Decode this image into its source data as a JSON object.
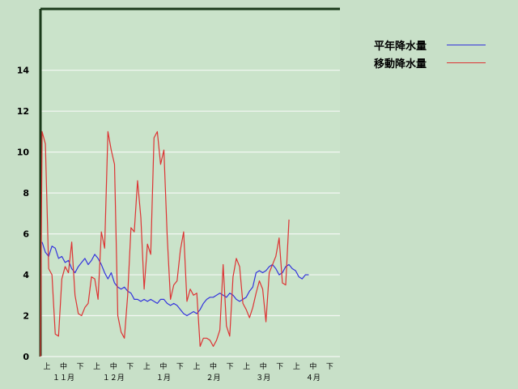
{
  "chart_data": {
    "type": "line",
    "title": "",
    "xlabel": "",
    "ylabel": "",
    "ylim": [
      0,
      17
    ],
    "yticks": [
      0,
      2,
      4,
      6,
      8,
      10,
      12,
      14
    ],
    "grid": "horizontal",
    "legend": "top-right",
    "x_unit": "半旬",
    "x_count": 90,
    "period_labels": [
      "上",
      "中",
      "下",
      "上",
      "中",
      "下",
      "上",
      "中",
      "下",
      "上",
      "中",
      "下",
      "上",
      "中",
      "下",
      "上",
      "中",
      "下"
    ],
    "month_labels": [
      "１１月",
      "１２月",
      "１月",
      "２月",
      "３月",
      "４月"
    ],
    "series": [
      {
        "name": "平年降水量",
        "color": "#3333dd",
        "values": [
          5.6,
          5.1,
          4.9,
          5.4,
          5.3,
          4.8,
          4.9,
          4.6,
          4.7,
          4.3,
          4.1,
          4.4,
          4.6,
          4.8,
          4.5,
          4.7,
          5.0,
          4.8,
          4.5,
          4.1,
          3.8,
          4.1,
          3.6,
          3.4,
          3.3,
          3.4,
          3.2,
          3.1,
          2.8,
          2.8,
          2.7,
          2.8,
          2.7,
          2.8,
          2.7,
          2.6,
          2.8,
          2.8,
          2.6,
          2.5,
          2.6,
          2.5,
          2.3,
          2.1,
          2.0,
          2.1,
          2.2,
          2.1,
          2.3,
          2.6,
          2.8,
          2.9,
          2.9,
          3.0,
          3.1,
          3.0,
          2.9,
          3.1,
          3.0,
          2.8,
          2.7,
          2.8,
          2.9,
          3.2,
          3.4,
          4.1,
          4.2,
          4.1,
          4.2,
          4.4,
          4.5,
          4.3,
          4.0,
          4.1,
          4.4,
          4.5,
          4.3,
          4.2,
          3.9,
          3.8,
          4.0,
          4.0
        ]
      },
      {
        "name": "移動降水量",
        "color": "#dd3333",
        "values": [
          11.0,
          10.4,
          4.3,
          4.0,
          1.1,
          1.0,
          3.8,
          4.4,
          4.1,
          5.6,
          3.0,
          2.1,
          2.0,
          2.4,
          2.6,
          3.9,
          3.8,
          2.8,
          6.1,
          5.3,
          11.0,
          10.1,
          9.4,
          2.0,
          1.2,
          0.9,
          3.0,
          6.3,
          6.1,
          8.6,
          6.8,
          3.3,
          5.5,
          5.0,
          10.7,
          11.0,
          9.4,
          10.1,
          5.9,
          2.8,
          3.5,
          3.7,
          5.2,
          6.1,
          2.7,
          3.3,
          3.0,
          3.1,
          0.5,
          0.9,
          0.9,
          0.8,
          0.5,
          0.8,
          1.3,
          4.5,
          1.5,
          1.0,
          3.9,
          4.8,
          4.4,
          2.6,
          2.3,
          1.9,
          2.4,
          3.1,
          3.7,
          3.3,
          1.7,
          4.1,
          4.5,
          4.9,
          5.8,
          3.6,
          3.5,
          6.7
        ]
      }
    ]
  }
}
